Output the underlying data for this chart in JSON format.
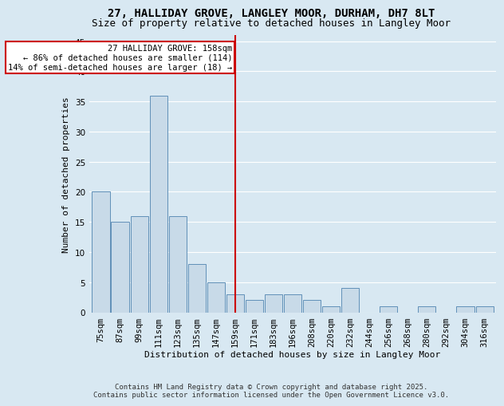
{
  "title": "27, HALLIDAY GROVE, LANGLEY MOOR, DURHAM, DH7 8LT",
  "subtitle": "Size of property relative to detached houses in Langley Moor",
  "xlabel": "Distribution of detached houses by size in Langley Moor",
  "ylabel": "Number of detached properties",
  "categories": [
    "75sqm",
    "87sqm",
    "99sqm",
    "111sqm",
    "123sqm",
    "135sqm",
    "147sqm",
    "159sqm",
    "171sqm",
    "183sqm",
    "196sqm",
    "208sqm",
    "220sqm",
    "232sqm",
    "244sqm",
    "256sqm",
    "268sqm",
    "280sqm",
    "292sqm",
    "304sqm",
    "316sqm"
  ],
  "values": [
    20,
    15,
    16,
    36,
    16,
    8,
    5,
    3,
    2,
    3,
    3,
    2,
    1,
    4,
    0,
    1,
    0,
    1,
    0,
    1,
    1
  ],
  "bar_color": "#c8dae8",
  "bar_edge_color": "#6090b8",
  "background_color": "#d8e8f2",
  "plot_bg_color": "#d8e8f2",
  "grid_color": "#ffffff",
  "ref_line_label": "27 HALLIDAY GROVE: 158sqm",
  "annotation_line1": "← 86% of detached houses are smaller (114)",
  "annotation_line2": "14% of semi-detached houses are larger (18) →",
  "annotation_box_color": "#ffffff",
  "annotation_box_edge_color": "#cc0000",
  "ref_line_color": "#cc0000",
  "footer": "Contains HM Land Registry data © Crown copyright and database right 2025.\nContains public sector information licensed under the Open Government Licence v3.0.",
  "ylim": [
    0,
    46
  ],
  "title_fontsize": 10,
  "subtitle_fontsize": 9,
  "axis_label_fontsize": 8,
  "tick_fontsize": 7.5,
  "footer_fontsize": 6.5,
  "annotation_fontsize": 7.5
}
